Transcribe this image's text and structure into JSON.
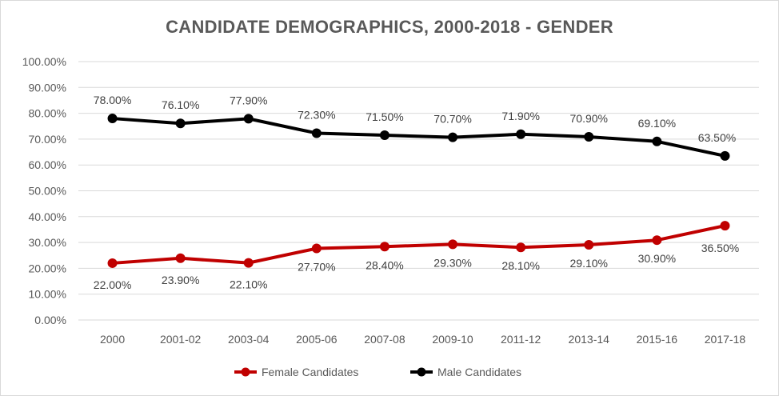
{
  "chart_data": {
    "type": "line",
    "title": "CANDIDATE DEMOGRAPHICS, 2000-2018 - GENDER",
    "categories": [
      "2000",
      "2001-02",
      "2003-04",
      "2005-06",
      "2007-08",
      "2009-10",
      "2011-12",
      "2013-14",
      "2015-16",
      "2017-18"
    ],
    "ylim": [
      0,
      100
    ],
    "yticks": [
      "0.00%",
      "10.00%",
      "20.00%",
      "30.00%",
      "40.00%",
      "50.00%",
      "60.00%",
      "70.00%",
      "80.00%",
      "90.00%",
      "100.00%"
    ],
    "grid": true,
    "legend_position": "bottom",
    "series": [
      {
        "name": "Female Candidates",
        "color": "#c00000",
        "values": [
          22.0,
          23.9,
          22.1,
          27.7,
          28.4,
          29.3,
          28.1,
          29.1,
          30.9,
          36.5
        ],
        "labels": [
          "22.00%",
          "23.90%",
          "22.10%",
          "27.70%",
          "28.40%",
          "29.30%",
          "28.10%",
          "29.10%",
          "30.90%",
          "36.50%"
        ]
      },
      {
        "name": "Male Candidates",
        "color": "#000000",
        "values": [
          78.0,
          76.1,
          77.9,
          72.3,
          71.5,
          70.7,
          71.9,
          70.9,
          69.1,
          63.5
        ],
        "labels": [
          "78.00%",
          "76.10%",
          "77.90%",
          "72.30%",
          "71.50%",
          "70.70%",
          "71.90%",
          "70.90%",
          "69.10%",
          "63.50%"
        ]
      }
    ]
  }
}
